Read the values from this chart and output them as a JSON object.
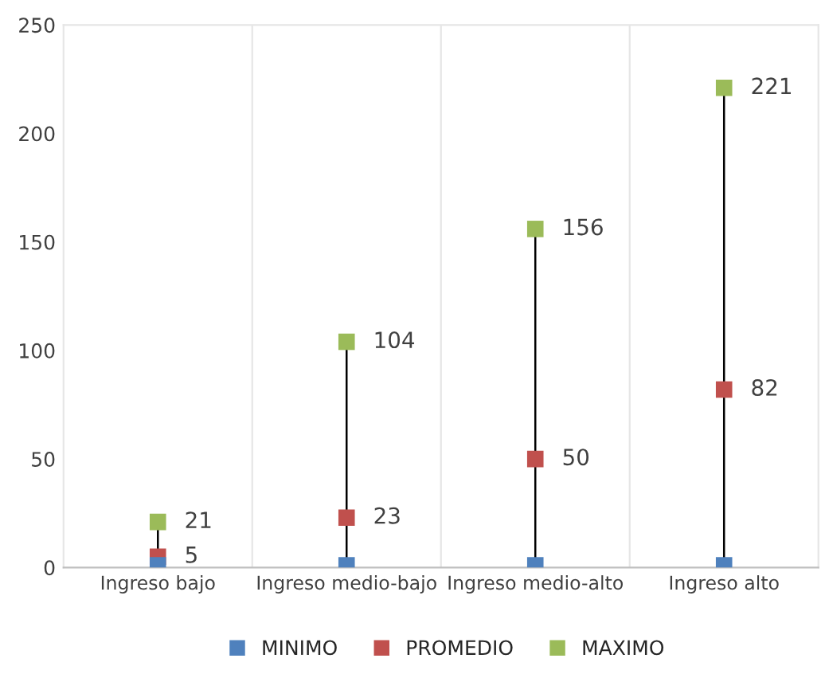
{
  "chart_data": {
    "type": "scatter",
    "categories": [
      "Ingreso bajo",
      "Ingreso medio-bajo",
      "Ingreso medio-alto",
      "Ingreso alto"
    ],
    "series": [
      {
        "name": "MINIMO",
        "color": "#4f81bd",
        "values": [
          1,
          1,
          1,
          1
        ]
      },
      {
        "name": "PROMEDIO",
        "color": "#c0504d",
        "values": [
          5,
          23,
          50,
          82
        ],
        "value_labels": [
          "5",
          "23",
          "50",
          "82"
        ]
      },
      {
        "name": "MAXIMO",
        "color": "#9bbb59",
        "values": [
          21,
          104,
          156,
          221
        ],
        "value_labels": [
          "21",
          "104",
          "156",
          "221"
        ]
      }
    ],
    "ylim": [
      0,
      250
    ],
    "yticks": [
      0,
      50,
      100,
      150,
      200,
      250
    ],
    "grid": "x",
    "legend": "bottom",
    "marker": "square"
  }
}
